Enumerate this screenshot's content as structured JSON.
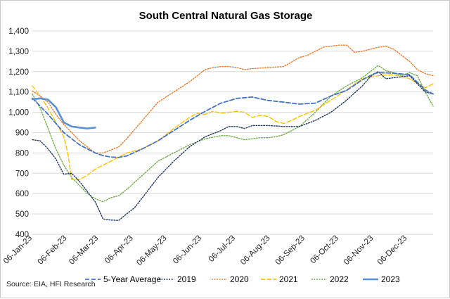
{
  "colors": {
    "five_year_avg": "#4472C4",
    "y2019": "#1F3864",
    "y2020": "#ED7D31",
    "y2021": "#FFC000",
    "y2022": "#70AD47",
    "y2023": "#5B8FD6",
    "grid": "#d9d9d9"
  },
  "source_text": "Source: EIA, HFI Research",
  "chart_data": {
    "type": "line",
    "title": "South Central Natural Gas Storage",
    "xlabel": "",
    "ylabel": "",
    "ylim": [
      400,
      1400
    ],
    "yticks": [
      400,
      500,
      600,
      700,
      800,
      900,
      1000,
      1100,
      1200,
      1300,
      1400
    ],
    "ytick_labels": [
      "400",
      "500",
      "600",
      "700",
      "800",
      "900",
      "1,000",
      "1,100",
      "1,200",
      "1,300",
      "1,400"
    ],
    "x_unit": "week",
    "xlim": [
      0,
      51
    ],
    "xticks": [
      0,
      4.43,
      8.43,
      12.86,
      17.14,
      21.57,
      25.86,
      30.29,
      34.71,
      39,
      43.43,
      47.71
    ],
    "xtick_labels": [
      "06-Jan-23",
      "06-Feb-23",
      "06-Mar-23",
      "06-Apr-23",
      "06-May-23",
      "06-Jun-23",
      "06-Jul-23",
      "06-Aug-23",
      "06-Sep-23",
      "06-Oct-23",
      "06-Nov-23",
      "06-Dec-23"
    ],
    "grid": "horizontal",
    "legend_position": "bottom",
    "series": [
      {
        "name": "5-Year Average",
        "style": "dashed",
        "color_key": "five_year_avg",
        "x": [
          0,
          2,
          4,
          6,
          8,
          9,
          10,
          11,
          12,
          14,
          16,
          18,
          20,
          22,
          24,
          26,
          28,
          30,
          32,
          34,
          36,
          38,
          40,
          42,
          43.5,
          44,
          46,
          48,
          50,
          51
        ],
        "y": [
          1070,
          990,
          900,
          840,
          800,
          787,
          780,
          778,
          785,
          820,
          860,
          910,
          960,
          1005,
          1045,
          1068,
          1075,
          1058,
          1050,
          1040,
          1045,
          1080,
          1108,
          1160,
          1190,
          1195,
          1192,
          1185,
          1110,
          1090
        ]
      },
      {
        "name": "2019",
        "style": "dotted",
        "color_key": "y2019",
        "x": [
          0,
          1,
          2,
          3,
          4,
          5,
          6,
          7,
          8,
          9,
          10,
          11,
          12,
          13,
          14,
          16,
          18,
          20,
          22,
          24,
          25,
          26,
          27,
          28,
          30,
          32,
          34,
          36,
          38,
          40,
          42,
          43,
          44,
          45,
          46,
          48,
          50,
          51
        ],
        "y": [
          865,
          860,
          820,
          770,
          695,
          700,
          660,
          610,
          560,
          475,
          470,
          468,
          500,
          530,
          580,
          680,
          760,
          830,
          880,
          910,
          930,
          930,
          920,
          935,
          935,
          930,
          930,
          960,
          1000,
          1060,
          1130,
          1175,
          1200,
          1165,
          1170,
          1180,
          1100,
          1090
        ]
      },
      {
        "name": "2020",
        "style": "dotted",
        "color_key": "y2020",
        "x": [
          0,
          1,
          2,
          3,
          4,
          5,
          6,
          7,
          8,
          9,
          10,
          11,
          12,
          14,
          16,
          18,
          20,
          22,
          23,
          24,
          25,
          26,
          27,
          28,
          30,
          32,
          34,
          35,
          36,
          37,
          38,
          39,
          40,
          41,
          42,
          43,
          44,
          45,
          46,
          47,
          48,
          49,
          50,
          51
        ],
        "y": [
          1105,
          1080,
          1050,
          990,
          940,
          900,
          860,
          830,
          800,
          800,
          815,
          830,
          870,
          960,
          1050,
          1100,
          1150,
          1210,
          1220,
          1225,
          1225,
          1220,
          1210,
          1215,
          1220,
          1225,
          1270,
          1280,
          1300,
          1320,
          1325,
          1330,
          1330,
          1295,
          1300,
          1310,
          1320,
          1325,
          1310,
          1280,
          1250,
          1210,
          1190,
          1180
        ]
      },
      {
        "name": "2021",
        "style": "dashed",
        "color_key": "y2021",
        "x": [
          0,
          1,
          2,
          3,
          4,
          4.5,
          5,
          6,
          7,
          8,
          9,
          10,
          12,
          14,
          16,
          18,
          20,
          21,
          22,
          23,
          24,
          25,
          26,
          27,
          28,
          29,
          30,
          31,
          32,
          33,
          34,
          36,
          38,
          40,
          42,
          44,
          46,
          48,
          50,
          51
        ],
        "y": [
          1130,
          1080,
          1020,
          950,
          880,
          800,
          670,
          670,
          690,
          720,
          740,
          760,
          800,
          820,
          860,
          920,
          975,
          995,
          990,
          1005,
          995,
          1000,
          1005,
          1000,
          975,
          985,
          980,
          955,
          945,
          960,
          980,
          1010,
          1060,
          1110,
          1165,
          1180,
          1185,
          1165,
          1120,
          1140
        ]
      },
      {
        "name": "2022",
        "style": "dotted",
        "color_key": "y2022",
        "x": [
          0,
          1,
          2,
          3,
          4,
          5,
          6,
          7,
          8,
          9,
          10,
          11,
          12,
          14,
          16,
          18,
          20,
          22,
          24,
          25,
          26,
          27,
          28,
          29,
          30,
          31,
          32,
          34,
          36,
          38,
          40,
          42,
          43,
          44,
          45,
          46,
          47,
          48,
          49,
          50,
          51
        ],
        "y": [
          1090,
          1020,
          920,
          820,
          740,
          680,
          640,
          600,
          575,
          560,
          580,
          590,
          620,
          690,
          760,
          800,
          840,
          870,
          885,
          885,
          875,
          865,
          870,
          875,
          875,
          880,
          890,
          930,
          1000,
          1080,
          1130,
          1170,
          1200,
          1230,
          1205,
          1195,
          1180,
          1195,
          1180,
          1100,
          1030
        ]
      },
      {
        "name": "2023",
        "style": "solid",
        "color_key": "y2023",
        "x": [
          0,
          1,
          2,
          3,
          4,
          5,
          6,
          7,
          8
        ],
        "y": [
          1065,
          1068,
          1062,
          1025,
          950,
          930,
          925,
          920,
          925
        ]
      }
    ]
  }
}
